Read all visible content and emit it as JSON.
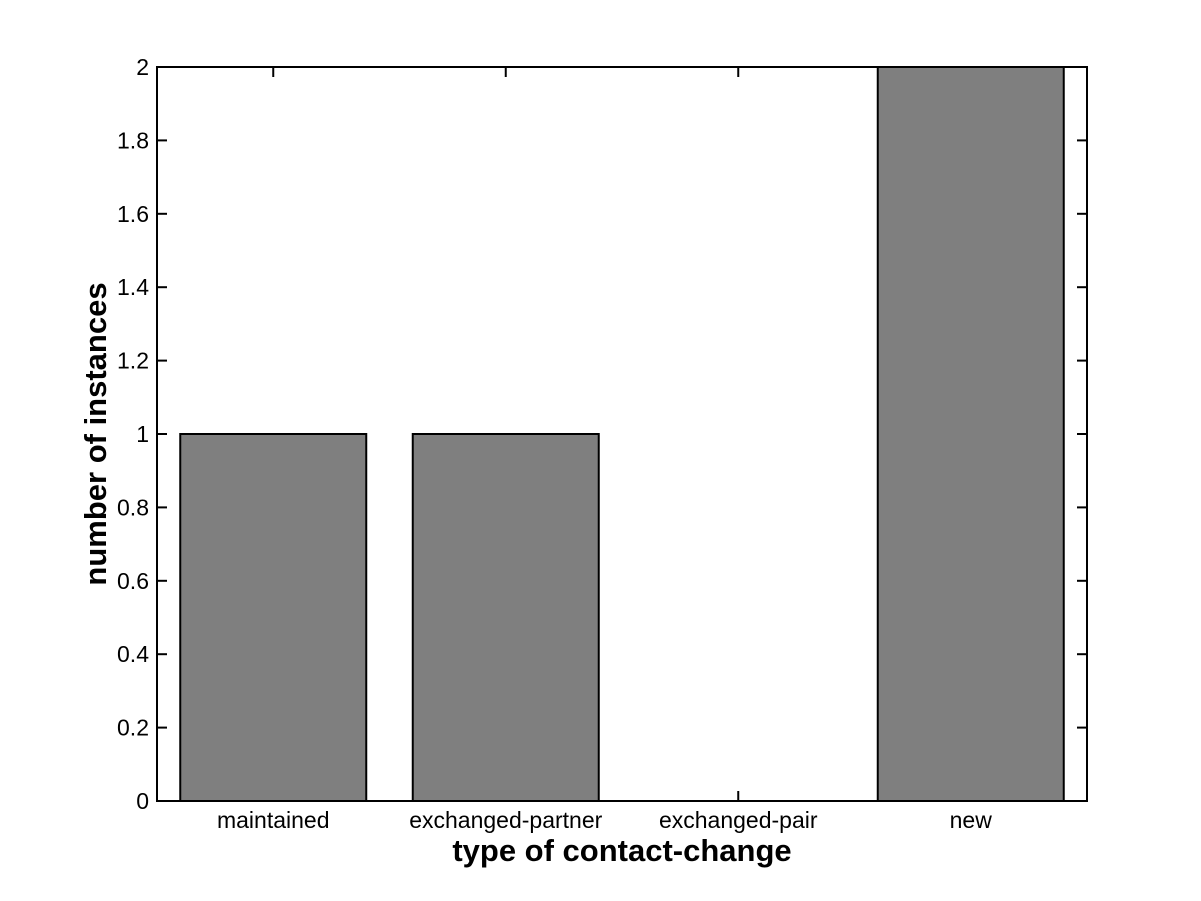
{
  "chart_data": {
    "type": "bar",
    "title": "",
    "categories": [
      "maintained",
      "exchanged-partner",
      "exchanged-pair",
      "new"
    ],
    "values": [
      1,
      1,
      0,
      2
    ],
    "xlabel": "type of contact-change",
    "ylabel": "number of instances",
    "ylim": [
      0,
      2
    ],
    "ytick_step": 0.2,
    "ytick_labels": [
      "0",
      "0.2",
      "0.4",
      "0.6",
      "0.8",
      "1",
      "1.2",
      "1.4",
      "1.6",
      "1.8",
      "2"
    ],
    "bar_width_fraction": 0.8,
    "grid": false,
    "legend_position": "none",
    "colors": {
      "bar_fill": "#7f7f7f",
      "bar_edge": "#000000",
      "axis": "#000000",
      "background": "#ffffff",
      "text": "#000000"
    },
    "style": "matlab-box-on"
  }
}
